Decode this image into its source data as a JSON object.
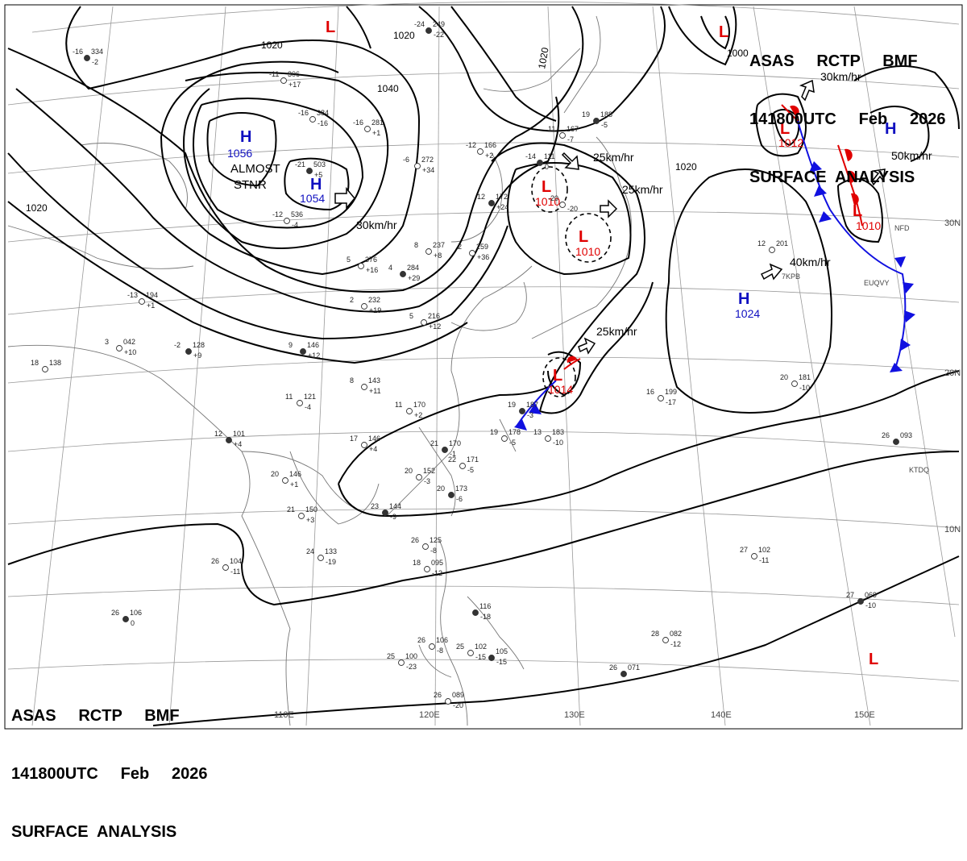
{
  "header": {
    "line1": "ASAS     RCTP     BMF",
    "line2": "141800UTC     Feb     2026",
    "line3": "SURFACE  ANALYSIS"
  },
  "colors": {
    "isobar": "#000000",
    "high": "#1010c0",
    "low": "#e00000",
    "cold_front": "#1010e0",
    "warm_front": "#e00000",
    "grid": "#888888",
    "coast": "#666666"
  },
  "longitudes": [
    "110E",
    "120E",
    "130E",
    "140E",
    "150E"
  ],
  "latitudes": [
    "30N",
    "20N",
    "10N"
  ],
  "isobars": [
    "1020",
    "1020",
    "1020",
    "1040",
    "1020",
    "1000",
    "1020"
  ],
  "highs": [
    {
      "letter": "H",
      "value": "1056"
    },
    {
      "letter": "H",
      "value": "1054"
    },
    {
      "letter": "H",
      "value": "1024"
    },
    {
      "letter": "H",
      "value": ""
    }
  ],
  "lows": [
    {
      "letter": "L",
      "value": ""
    },
    {
      "letter": "L",
      "value": ""
    },
    {
      "letter": "L",
      "value": "1010"
    },
    {
      "letter": "L",
      "value": "1010"
    },
    {
      "letter": "L",
      "value": "1014"
    },
    {
      "letter": "L",
      "value": "1012"
    },
    {
      "letter": "L",
      "value": "1010"
    },
    {
      "letter": "L",
      "value": ""
    }
  ],
  "motions": [
    "30km/hr",
    "25km/hr",
    "25km/hr",
    "25km/hr",
    "40km/hr",
    "30km/hr",
    "50km/hr"
  ],
  "annotations": [
    "ALMOST",
    "STNR"
  ],
  "stations": [
    {
      "temp": "-16",
      "pres": "334",
      "tend": "-2"
    },
    {
      "temp": "-11",
      "pres": "306",
      "tend": "+17"
    },
    {
      "temp": "-16",
      "pres": "384",
      "tend": "-16"
    },
    {
      "temp": "-21",
      "pres": "503",
      "tend": "+5"
    },
    {
      "temp": "-12",
      "pres": "536",
      "tend": "-4"
    },
    {
      "temp": "-16",
      "pres": "281",
      "tend": "+1"
    },
    {
      "temp": "-24",
      "pres": "249",
      "tend": "-22"
    },
    {
      "temp": "-6",
      "pres": "272",
      "tend": "+34"
    },
    {
      "temp": "-12",
      "pres": "166",
      "tend": "+2"
    },
    {
      "temp": "-14",
      "pres": "111",
      "tend": "0"
    },
    {
      "temp": "-20",
      "pres": "",
      "tend": "-20"
    },
    {
      "temp": "11",
      "pres": "167",
      "tend": "-7"
    },
    {
      "temp": "19",
      "pres": "188",
      "tend": "-5"
    },
    {
      "temp": "-13",
      "pres": "194",
      "tend": "+1"
    },
    {
      "temp": "3",
      "pres": "042",
      "tend": "+10"
    },
    {
      "temp": "-2",
      "pres": "128",
      "tend": "+9"
    },
    {
      "temp": "18",
      "pres": "138",
      "tend": ""
    },
    {
      "temp": "5",
      "pres": "376",
      "tend": "+16"
    },
    {
      "temp": "4",
      "pres": "284",
      "tend": "+29"
    },
    {
      "temp": "8",
      "pres": "237",
      "tend": "+8"
    },
    {
      "temp": "2",
      "pres": "259",
      "tend": "+36"
    },
    {
      "temp": "12",
      "pres": "172",
      "tend": "+24"
    },
    {
      "temp": "2",
      "pres": "232",
      "tend": "+19"
    },
    {
      "temp": "5",
      "pres": "216",
      "tend": "+12"
    },
    {
      "temp": "9",
      "pres": "146",
      "tend": "+12"
    },
    {
      "temp": "8",
      "pres": "143",
      "tend": "+11"
    },
    {
      "temp": "11",
      "pres": "121",
      "tend": "-4"
    },
    {
      "temp": "12",
      "pres": "101",
      "tend": "+4"
    },
    {
      "temp": "17",
      "pres": "146",
      "tend": "+4"
    },
    {
      "temp": "11",
      "pres": "170",
      "tend": "+2"
    },
    {
      "temp": "21",
      "pres": "170",
      "tend": "-1"
    },
    {
      "temp": "22",
      "pres": "171",
      "tend": "-5"
    },
    {
      "temp": "20",
      "pres": "152",
      "tend": "-3"
    },
    {
      "temp": "20",
      "pres": "173",
      "tend": "-6"
    },
    {
      "temp": "20",
      "pres": "146",
      "tend": "+1"
    },
    {
      "temp": "21",
      "pres": "150",
      "tend": "+3"
    },
    {
      "temp": "23",
      "pres": "144",
      "tend": "-9"
    },
    {
      "temp": "24",
      "pres": "133",
      "tend": "-19"
    },
    {
      "temp": "26",
      "pres": "104",
      "tend": "-11"
    },
    {
      "temp": "26",
      "pres": "106",
      "tend": "0"
    },
    {
      "temp": "19",
      "pres": "178",
      "tend": "-5"
    },
    {
      "temp": "13",
      "pres": "183",
      "tend": "-10"
    },
    {
      "temp": "19",
      "pres": "187",
      "tend": "-3"
    },
    {
      "temp": "16",
      "pres": "199",
      "tend": "-17"
    },
    {
      "temp": "20",
      "pres": "181",
      "tend": "-10"
    },
    {
      "temp": "26",
      "pres": "093",
      "tend": ""
    },
    {
      "temp": "27",
      "pres": "102",
      "tend": "-11"
    },
    {
      "temp": "28",
      "pres": "082",
      "tend": "-12"
    },
    {
      "temp": "27",
      "pres": "069",
      "tend": "-10"
    },
    {
      "temp": "26",
      "pres": "125",
      "tend": "-8"
    },
    {
      "temp": "18",
      "pres": "095",
      "tend": "-12"
    },
    {
      "temp": "",
      "pres": "116",
      "tend": "-18"
    },
    {
      "temp": "26",
      "pres": "106",
      "tend": "-8"
    },
    {
      "temp": "25",
      "pres": "102",
      "tend": "-15"
    },
    {
      "temp": "",
      "pres": "105",
      "tend": "-15"
    },
    {
      "temp": "25",
      "pres": "100",
      "tend": "-23"
    },
    {
      "temp": "26",
      "pres": "089",
      "tend": "-20"
    },
    {
      "temp": "26",
      "pres": "071",
      "tend": ""
    },
    {
      "temp": "12",
      "pres": "201",
      "tend": ""
    }
  ],
  "ship_ids": [
    "7KPB",
    "EUQVY",
    "KTDQ",
    "NFD"
  ]
}
